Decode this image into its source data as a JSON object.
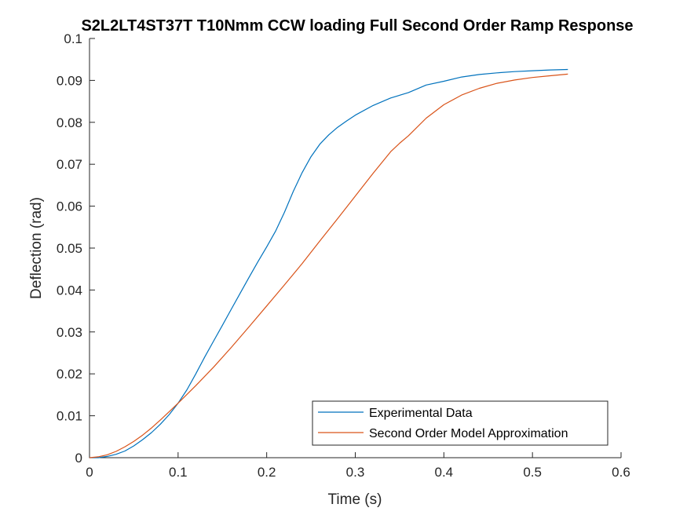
{
  "chart_data": {
    "type": "line",
    "title": "S2L2LT4ST37T T10Nmm CCW loading Full Second Order Ramp Response",
    "xlabel": "Time (s)",
    "ylabel": "Deflection (rad)",
    "xlim": [
      0,
      0.6
    ],
    "ylim": [
      0,
      0.1
    ],
    "xticks": [
      0,
      0.1,
      0.2,
      0.3,
      0.4,
      0.5,
      0.6
    ],
    "yticks": [
      0,
      0.01,
      0.02,
      0.03,
      0.04,
      0.05,
      0.06,
      0.07,
      0.08,
      0.09,
      0.1
    ],
    "xtick_labels": [
      "0",
      "0.1",
      "0.2",
      "0.3",
      "0.4",
      "0.5",
      "0.6"
    ],
    "ytick_labels": [
      "0",
      "0.01",
      "0.02",
      "0.03",
      "0.04",
      "0.05",
      "0.06",
      "0.07",
      "0.08",
      "0.09",
      "0.1"
    ],
    "grid": false,
    "legend_position": "bottom-right",
    "series": [
      {
        "name": "Experimental Data",
        "color": "#0072BD",
        "x": [
          0,
          0.01,
          0.02,
          0.03,
          0.04,
          0.05,
          0.06,
          0.07,
          0.08,
          0.09,
          0.1,
          0.11,
          0.12,
          0.13,
          0.14,
          0.15,
          0.16,
          0.17,
          0.18,
          0.19,
          0.2,
          0.21,
          0.22,
          0.23,
          0.24,
          0.25,
          0.26,
          0.27,
          0.28,
          0.29,
          0.3,
          0.32,
          0.34,
          0.36,
          0.38,
          0.4,
          0.42,
          0.44,
          0.46,
          0.48,
          0.5,
          0.52,
          0.54
        ],
        "y": [
          0,
          0,
          0.0003,
          0.0008,
          0.0016,
          0.0028,
          0.0043,
          0.006,
          0.008,
          0.0103,
          0.013,
          0.0162,
          0.02,
          0.024,
          0.0278,
          0.0316,
          0.0354,
          0.0392,
          0.043,
          0.0467,
          0.0503,
          0.054,
          0.0585,
          0.0635,
          0.068,
          0.0718,
          0.0748,
          0.077,
          0.0788,
          0.0803,
          0.0817,
          0.084,
          0.0858,
          0.0871,
          0.0889,
          0.0898,
          0.0908,
          0.0914,
          0.0918,
          0.0921,
          0.0923,
          0.0925,
          0.0926
        ]
      },
      {
        "name": "Second Order Model Approximation",
        "color": "#D95319",
        "x": [
          0,
          0.01,
          0.02,
          0.03,
          0.04,
          0.05,
          0.06,
          0.07,
          0.08,
          0.09,
          0.1,
          0.12,
          0.14,
          0.16,
          0.18,
          0.2,
          0.22,
          0.24,
          0.26,
          0.28,
          0.3,
          0.32,
          0.34,
          0.35,
          0.36,
          0.38,
          0.4,
          0.42,
          0.44,
          0.46,
          0.48,
          0.5,
          0.52,
          0.54
        ],
        "y": [
          0,
          0.0002,
          0.0007,
          0.0015,
          0.0026,
          0.0039,
          0.0054,
          0.0071,
          0.009,
          0.011,
          0.013,
          0.0172,
          0.0216,
          0.0263,
          0.0312,
          0.0362,
          0.0412,
          0.0463,
          0.0517,
          0.057,
          0.0624,
          0.0678,
          0.073,
          0.075,
          0.0768,
          0.081,
          0.0842,
          0.0865,
          0.0881,
          0.0893,
          0.0901,
          0.0907,
          0.0911,
          0.0915
        ]
      }
    ]
  }
}
